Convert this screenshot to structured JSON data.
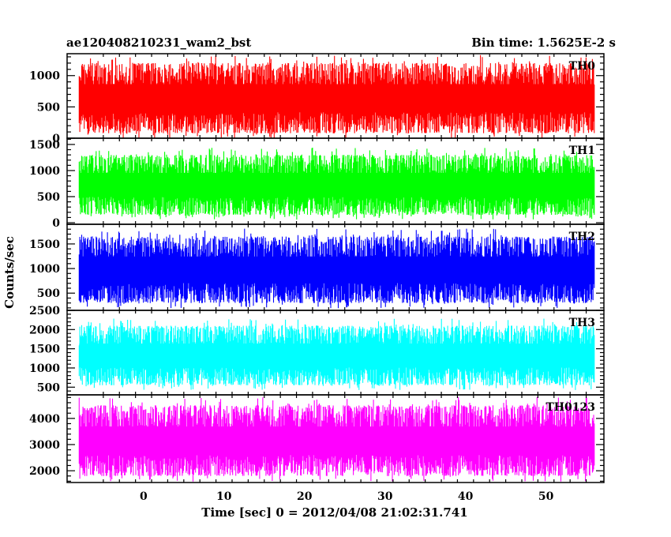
{
  "chart_data": {
    "type": "line",
    "title_left": "ae120408210231_wam2_bst",
    "title_right": "Bin time: 1.5625E-2 s",
    "xlabel": "Time [sec] 0 = 2012/04/08 21:02:31.741",
    "ylabel": "Counts/sec",
    "xlim": [
      -9.5,
      57.2
    ],
    "x_range_data": [
      -8.0,
      56.0
    ],
    "x_ticks": [
      0,
      10,
      20,
      30,
      40,
      50
    ],
    "x_tick_labels": [
      "0",
      "10",
      "20",
      "30",
      "40",
      "50"
    ],
    "panels": [
      {
        "name": "TH0",
        "color": "#ff0000",
        "ylim": [
          0,
          1350
        ],
        "y_ticks": [
          0,
          500,
          1000
        ],
        "y_tick_labels": [
          "0",
          "500",
          "1000"
        ],
        "typical_min": 80,
        "typical_max": 1200
      },
      {
        "name": "TH1",
        "color": "#00ff00",
        "ylim": [
          -30,
          1620
        ],
        "y_ticks": [
          0,
          500,
          1000,
          1500
        ],
        "y_tick_labels": [
          "0",
          "500",
          "1000",
          "1500"
        ],
        "typical_min": 150,
        "typical_max": 1300
      },
      {
        "name": "TH2",
        "color": "#0000ff",
        "ylim": [
          150,
          1900
        ],
        "y_ticks": [
          500,
          1000,
          1500
        ],
        "y_tick_labels": [
          "500",
          "1000",
          "1500"
        ],
        "typical_min": 300,
        "typical_max": 1650
      },
      {
        "name": "TH3",
        "color": "#00ffff",
        "ylim": [
          300,
          2500
        ],
        "y_ticks": [
          500,
          1000,
          1500,
          2000,
          2500
        ],
        "y_tick_labels": [
          "500",
          "1000",
          "1500",
          "2000",
          "2500"
        ],
        "typical_min": 550,
        "typical_max": 2100
      },
      {
        "name": "TH0123",
        "color": "#ff00ff",
        "ylim": [
          1550,
          4900
        ],
        "y_ticks": [
          2000,
          3000,
          4000
        ],
        "y_tick_labels": [
          "2000",
          "3000",
          "4000"
        ],
        "typical_min": 1800,
        "typical_max": 4500
      }
    ]
  }
}
